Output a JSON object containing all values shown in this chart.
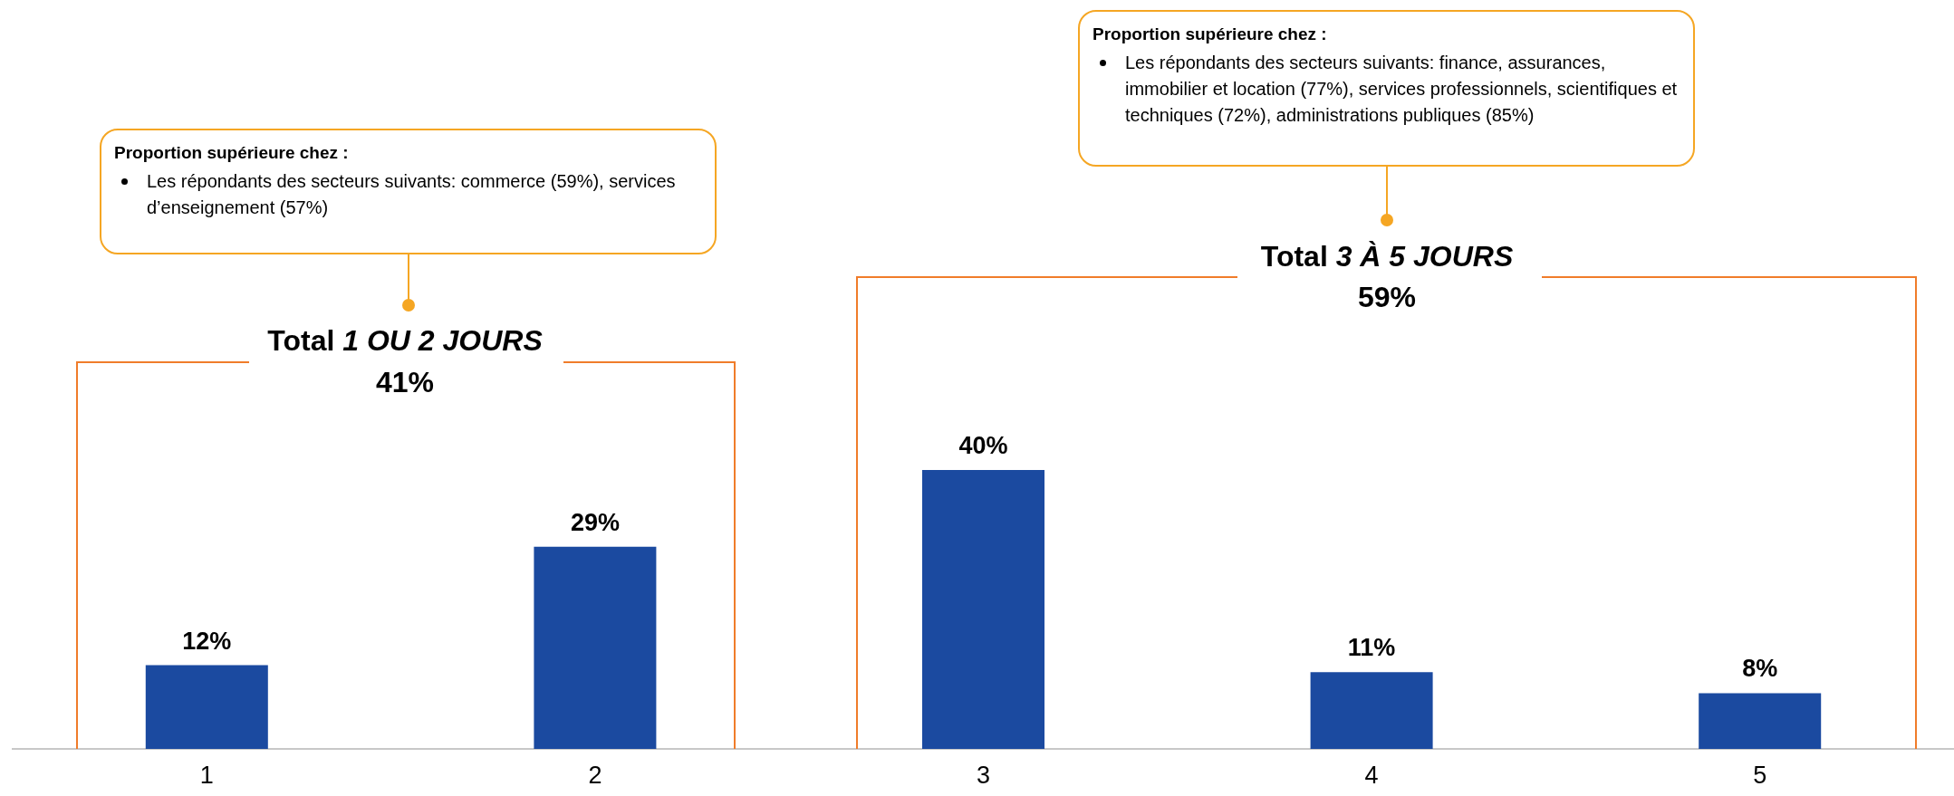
{
  "chart_data": {
    "type": "bar",
    "categories": [
      "1",
      "2",
      "3",
      "4",
      "5"
    ],
    "values": [
      12,
      29,
      40,
      11,
      8
    ],
    "color": "#1b4aa0",
    "value_labels": [
      "12%",
      "29%",
      "40%",
      "11%",
      "8%"
    ],
    "annotations": [
      "Proportion supérieure chez :",
      "Les répondants des secteurs suivants: commerce (59%), services d’enseignement (57%)",
      "Total 1 OU 2 JOURS",
      "41%",
      "Proportion supérieure chez :",
      "Les répondants des secteurs suivants: finance, assurances, immobilier et location (77%), services professionnels, scientifiques et techniques (72%), administrations publiques (85%)",
      "Total 3 À 5 JOURS",
      "59%"
    ],
    "grid": false,
    "legend": false
  }
}
